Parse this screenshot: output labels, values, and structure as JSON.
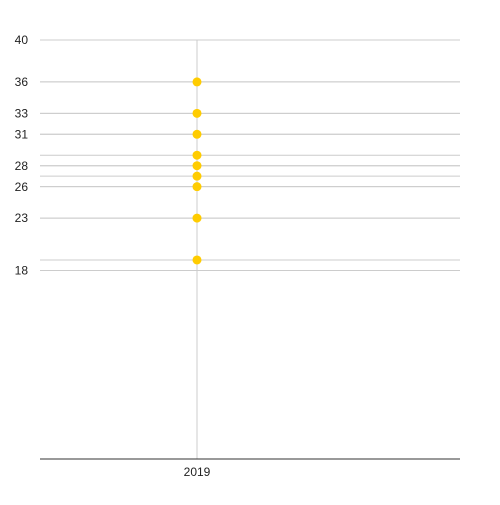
{
  "chart_data": {
    "type": "dot",
    "categories": [
      "2019"
    ],
    "values": [
      [
        36,
        33,
        31,
        29,
        28,
        27,
        26,
        23,
        19
      ]
    ],
    "color": "#ffcc00",
    "ylim": [
      0,
      40
    ],
    "yticks": [
      40,
      36,
      33,
      31,
      28,
      26,
      23,
      18
    ],
    "grid": true,
    "grid_at_values": true
  }
}
